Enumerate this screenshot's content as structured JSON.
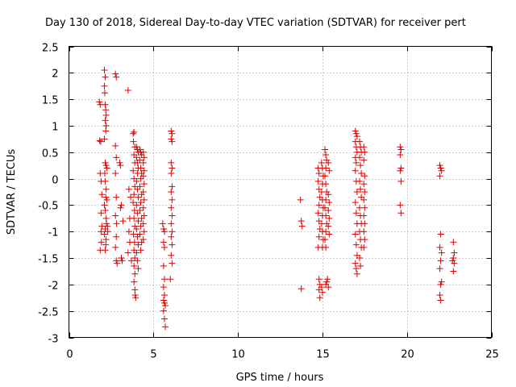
{
  "chart_data": {
    "type": "scatter",
    "title": "Day 130 of 2018, Sidereal Day-to-day VTEC variation (SDTVAR) for receiver pert",
    "xlabel": "GPS time / hours",
    "ylabel": "SDTVAR / TECUs",
    "xlim": [
      0,
      25
    ],
    "ylim": [
      -3,
      2.5
    ],
    "xticks": [
      0,
      5,
      10,
      15,
      20,
      25
    ],
    "xtick_labels": [
      "0",
      "5",
      "10",
      "15",
      "20",
      "25"
    ],
    "yticks": [
      -3,
      -2.5,
      -2,
      -1.5,
      -1,
      -0.5,
      0,
      0.5,
      1,
      1.5,
      2,
      2.5
    ],
    "ytick_labels": [
      "-3",
      "-2.5",
      "-2",
      "-1.5",
      "-1",
      "-0.5",
      "0",
      "0.5",
      "1",
      "1.5",
      "2",
      "2.5"
    ],
    "grid": true,
    "marker": "+",
    "color": "#e00000",
    "series": [
      {
        "name": "SDTVAR",
        "points": [
          [
            1.8,
            1.45
          ],
          [
            1.85,
            1.4
          ],
          [
            1.82,
            0.72
          ],
          [
            1.88,
            0.7
          ],
          [
            1.9,
            -0.05
          ],
          [
            1.85,
            0.1
          ],
          [
            1.95,
            -0.3
          ],
          [
            1.9,
            -0.65
          ],
          [
            1.95,
            -0.9
          ],
          [
            1.9,
            -1.0
          ],
          [
            1.92,
            -1.2
          ],
          [
            1.85,
            -1.35
          ],
          [
            2.1,
            2.05
          ],
          [
            2.15,
            1.92
          ],
          [
            2.1,
            1.75
          ],
          [
            2.12,
            1.62
          ],
          [
            2.15,
            1.4
          ],
          [
            2.18,
            1.3
          ],
          [
            2.2,
            1.2
          ],
          [
            2.15,
            1.1
          ],
          [
            2.2,
            1.0
          ],
          [
            2.18,
            0.9
          ],
          [
            2.1,
            0.75
          ],
          [
            2.15,
            0.3
          ],
          [
            2.2,
            0.25
          ],
          [
            2.25,
            0.2
          ],
          [
            2.12,
            0.1
          ],
          [
            2.15,
            -0.05
          ],
          [
            2.2,
            -0.2
          ],
          [
            2.18,
            -0.35
          ],
          [
            2.1,
            -0.5
          ],
          [
            2.15,
            -0.6
          ],
          [
            2.2,
            -0.75
          ],
          [
            2.22,
            -0.85
          ],
          [
            2.15,
            -0.95
          ],
          [
            2.1,
            -1.05
          ],
          [
            2.2,
            -1.15
          ],
          [
            2.18,
            -1.25
          ],
          [
            2.15,
            -1.35
          ],
          [
            2.25,
            -0.4
          ],
          [
            2.28,
            -0.9
          ],
          [
            2.3,
            -1.0
          ],
          [
            2.75,
            1.98
          ],
          [
            2.8,
            1.92
          ],
          [
            2.75,
            0.62
          ],
          [
            2.8,
            0.4
          ],
          [
            2.75,
            0.1
          ],
          [
            2.8,
            -0.35
          ],
          [
            2.75,
            -0.7
          ],
          [
            2.82,
            -0.85
          ],
          [
            2.8,
            -1.1
          ],
          [
            2.75,
            -1.3
          ],
          [
            2.8,
            -1.55
          ],
          [
            2.85,
            -1.6
          ],
          [
            3.0,
            0.3
          ],
          [
            3.05,
            0.25
          ],
          [
            3.1,
            -0.5
          ],
          [
            3.05,
            -0.55
          ],
          [
            3.1,
            -1.5
          ],
          [
            3.15,
            -1.55
          ],
          [
            3.2,
            -0.8
          ],
          [
            3.5,
            1.67
          ],
          [
            3.55,
            -0.2
          ],
          [
            3.6,
            -0.75
          ],
          [
            3.55,
            -1.0
          ],
          [
            3.6,
            -1.2
          ],
          [
            3.5,
            -1.4
          ],
          [
            3.65,
            -0.35
          ],
          [
            3.7,
            -1.55
          ],
          [
            3.8,
            0.85
          ],
          [
            3.85,
            0.88
          ],
          [
            3.82,
            0.7
          ],
          [
            3.9,
            0.6
          ],
          [
            3.85,
            0.45
          ],
          [
            3.9,
            0.3
          ],
          [
            3.8,
            0.15
          ],
          [
            3.85,
            0.0
          ],
          [
            3.9,
            -0.15
          ],
          [
            3.85,
            -0.3
          ],
          [
            3.8,
            -0.45
          ],
          [
            3.88,
            -0.6
          ],
          [
            3.85,
            -0.75
          ],
          [
            3.9,
            -0.9
          ],
          [
            3.82,
            -1.05
          ],
          [
            3.88,
            -1.2
          ],
          [
            3.85,
            -1.35
          ],
          [
            3.9,
            -1.5
          ],
          [
            3.85,
            -1.65
          ],
          [
            3.9,
            -1.8
          ],
          [
            3.85,
            -1.95
          ],
          [
            3.9,
            -2.1
          ],
          [
            3.92,
            -2.2
          ],
          [
            3.95,
            -2.25
          ],
          [
            4.0,
            0.6
          ],
          [
            4.05,
            0.55
          ],
          [
            4.1,
            0.5
          ],
          [
            4.0,
            0.4
          ],
          [
            4.05,
            0.3
          ],
          [
            4.1,
            0.2
          ],
          [
            4.05,
            0.1
          ],
          [
            4.0,
            -0.05
          ],
          [
            4.05,
            -0.2
          ],
          [
            4.1,
            -0.35
          ],
          [
            4.0,
            -0.5
          ],
          [
            4.05,
            -0.65
          ],
          [
            4.1,
            -0.8
          ],
          [
            4.0,
            -0.95
          ],
          [
            4.05,
            -1.1
          ],
          [
            4.1,
            -1.25
          ],
          [
            4.0,
            -1.4
          ],
          [
            4.05,
            -1.55
          ],
          [
            4.1,
            -1.7
          ],
          [
            4.2,
            0.55
          ],
          [
            4.25,
            0.5
          ],
          [
            4.3,
            0.45
          ],
          [
            4.2,
            0.35
          ],
          [
            4.25,
            0.2
          ],
          [
            4.3,
            0.1
          ],
          [
            4.25,
            0.0
          ],
          [
            4.2,
            -0.15
          ],
          [
            4.3,
            -0.3
          ],
          [
            4.25,
            -0.45
          ],
          [
            4.2,
            -0.6
          ],
          [
            4.3,
            -0.75
          ],
          [
            4.25,
            -0.9
          ],
          [
            4.2,
            -1.05
          ],
          [
            4.3,
            -1.2
          ],
          [
            4.25,
            -1.35
          ],
          [
            4.4,
            0.5
          ],
          [
            4.45,
            0.4
          ],
          [
            4.4,
            0.3
          ],
          [
            4.45,
            0.15
          ],
          [
            4.4,
            0.05
          ],
          [
            4.45,
            -0.1
          ],
          [
            4.4,
            -0.25
          ],
          [
            4.45,
            -0.4
          ],
          [
            4.4,
            -0.55
          ],
          [
            4.45,
            -0.7
          ],
          [
            4.4,
            -0.85
          ],
          [
            4.45,
            -1.0
          ],
          [
            4.4,
            -1.15
          ],
          [
            5.6,
            -0.95
          ],
          [
            5.65,
            -1.0
          ],
          [
            5.6,
            -1.2
          ],
          [
            5.65,
            -1.3
          ],
          [
            5.6,
            -1.65
          ],
          [
            5.65,
            -1.9
          ],
          [
            5.6,
            -2.05
          ],
          [
            5.65,
            -2.2
          ],
          [
            5.6,
            -2.3
          ],
          [
            5.65,
            -2.35
          ],
          [
            5.7,
            -2.4
          ],
          [
            5.6,
            -2.5
          ],
          [
            5.65,
            -2.65
          ],
          [
            5.7,
            -2.8
          ],
          [
            5.55,
            -0.85
          ],
          [
            6.05,
            0.9
          ],
          [
            6.1,
            0.85
          ],
          [
            6.05,
            0.75
          ],
          [
            6.1,
            0.7
          ],
          [
            6.05,
            0.3
          ],
          [
            6.1,
            0.2
          ],
          [
            6.05,
            0.1
          ],
          [
            6.1,
            -0.15
          ],
          [
            6.05,
            -0.25
          ],
          [
            6.1,
            -0.4
          ],
          [
            6.05,
            -0.55
          ],
          [
            6.1,
            -0.7
          ],
          [
            6.05,
            -0.85
          ],
          [
            6.1,
            -1.0
          ],
          [
            6.05,
            -1.1
          ],
          [
            6.1,
            -1.25
          ],
          [
            6.05,
            -1.45
          ],
          [
            6.1,
            -1.6
          ],
          [
            6.0,
            -1.9
          ],
          [
            13.7,
            -0.4
          ],
          [
            13.75,
            -0.8
          ],
          [
            13.8,
            -0.9
          ],
          [
            13.75,
            -2.08
          ],
          [
            14.75,
            0.2
          ],
          [
            14.8,
            0.1
          ],
          [
            14.75,
            -0.05
          ],
          [
            14.8,
            -0.2
          ],
          [
            14.85,
            -0.35
          ],
          [
            14.8,
            -0.5
          ],
          [
            14.75,
            -0.65
          ],
          [
            14.8,
            -0.8
          ],
          [
            14.85,
            -0.95
          ],
          [
            14.8,
            -1.1
          ],
          [
            14.75,
            -1.3
          ],
          [
            14.8,
            -1.9
          ],
          [
            14.85,
            -2.0
          ],
          [
            14.8,
            -2.1
          ],
          [
            14.85,
            -2.25
          ],
          [
            14.95,
            0.3
          ],
          [
            15.0,
            0.2
          ],
          [
            15.05,
            0.05
          ],
          [
            15.0,
            -0.1
          ],
          [
            14.95,
            -0.25
          ],
          [
            15.0,
            -0.4
          ],
          [
            15.05,
            -0.55
          ],
          [
            15.0,
            -0.7
          ],
          [
            14.95,
            -0.85
          ],
          [
            15.0,
            -1.0
          ],
          [
            15.05,
            -1.15
          ],
          [
            15.0,
            -1.3
          ],
          [
            14.95,
            -2.05
          ],
          [
            15.0,
            -2.15
          ],
          [
            15.15,
            0.55
          ],
          [
            15.2,
            0.45
          ],
          [
            15.25,
            0.35
          ],
          [
            15.2,
            0.2
          ],
          [
            15.15,
            0.05
          ],
          [
            15.2,
            -0.1
          ],
          [
            15.25,
            -0.25
          ],
          [
            15.2,
            -0.4
          ],
          [
            15.15,
            -0.55
          ],
          [
            15.2,
            -0.7
          ],
          [
            15.25,
            -0.85
          ],
          [
            15.2,
            -1.0
          ],
          [
            15.15,
            -1.15
          ],
          [
            15.2,
            -1.3
          ],
          [
            15.25,
            -1.95
          ],
          [
            15.2,
            -2.0
          ],
          [
            15.3,
            -1.9
          ],
          [
            15.35,
            -2.05
          ],
          [
            15.35,
            0.3
          ],
          [
            15.4,
            0.15
          ],
          [
            15.35,
            -0.3
          ],
          [
            15.4,
            -0.45
          ],
          [
            15.35,
            -0.6
          ],
          [
            15.4,
            -0.75
          ],
          [
            15.35,
            -0.9
          ],
          [
            15.4,
            -1.05
          ],
          [
            16.95,
            0.9
          ],
          [
            17.0,
            0.85
          ],
          [
            17.05,
            0.8
          ],
          [
            16.95,
            0.7
          ],
          [
            17.0,
            0.6
          ],
          [
            17.05,
            0.5
          ],
          [
            16.95,
            0.4
          ],
          [
            17.0,
            0.3
          ],
          [
            16.95,
            0.15
          ],
          [
            17.0,
            -0.05
          ],
          [
            17.05,
            -0.25
          ],
          [
            16.95,
            -0.45
          ],
          [
            17.0,
            -0.65
          ],
          [
            17.05,
            -0.85
          ],
          [
            16.95,
            -1.05
          ],
          [
            17.0,
            -1.25
          ],
          [
            17.05,
            -1.45
          ],
          [
            16.95,
            -1.6
          ],
          [
            17.0,
            -1.7
          ],
          [
            17.05,
            -1.8
          ],
          [
            17.2,
            0.7
          ],
          [
            17.25,
            0.6
          ],
          [
            17.3,
            0.5
          ],
          [
            17.2,
            0.4
          ],
          [
            17.25,
            0.25
          ],
          [
            17.3,
            0.1
          ],
          [
            17.2,
            -0.05
          ],
          [
            17.25,
            -0.2
          ],
          [
            17.3,
            -0.35
          ],
          [
            17.2,
            -0.55
          ],
          [
            17.25,
            -0.7
          ],
          [
            17.3,
            -0.85
          ],
          [
            17.2,
            -1.0
          ],
          [
            17.25,
            -1.15
          ],
          [
            17.3,
            -1.3
          ],
          [
            17.2,
            -1.5
          ],
          [
            17.25,
            -1.65
          ],
          [
            17.45,
            0.6
          ],
          [
            17.5,
            0.5
          ],
          [
            17.45,
            0.35
          ],
          [
            17.5,
            0.05
          ],
          [
            17.45,
            -0.1
          ],
          [
            17.5,
            -0.25
          ],
          [
            17.45,
            -0.4
          ],
          [
            17.5,
            -0.55
          ],
          [
            17.45,
            -0.7
          ],
          [
            17.5,
            -0.85
          ],
          [
            17.45,
            -1.0
          ],
          [
            17.5,
            -1.15
          ],
          [
            17.45,
            -1.3
          ],
          [
            19.6,
            0.6
          ],
          [
            19.65,
            0.55
          ],
          [
            19.6,
            0.45
          ],
          [
            19.65,
            0.2
          ],
          [
            19.6,
            0.15
          ],
          [
            19.65,
            -0.05
          ],
          [
            19.6,
            -0.5
          ],
          [
            19.65,
            -0.65
          ],
          [
            21.95,
            0.25
          ],
          [
            22.0,
            0.2
          ],
          [
            22.05,
            0.15
          ],
          [
            21.95,
            0.05
          ],
          [
            22.0,
            -1.05
          ],
          [
            21.95,
            -1.3
          ],
          [
            22.05,
            -1.4
          ],
          [
            22.0,
            -1.55
          ],
          [
            21.95,
            -1.7
          ],
          [
            22.05,
            -1.95
          ],
          [
            22.0,
            -2.0
          ],
          [
            21.95,
            -2.2
          ],
          [
            22.0,
            -2.3
          ],
          [
            22.75,
            -1.2
          ],
          [
            22.8,
            -1.4
          ],
          [
            22.75,
            -1.5
          ],
          [
            22.7,
            -1.55
          ],
          [
            22.8,
            -1.6
          ],
          [
            22.75,
            -1.75
          ]
        ]
      }
    ]
  }
}
